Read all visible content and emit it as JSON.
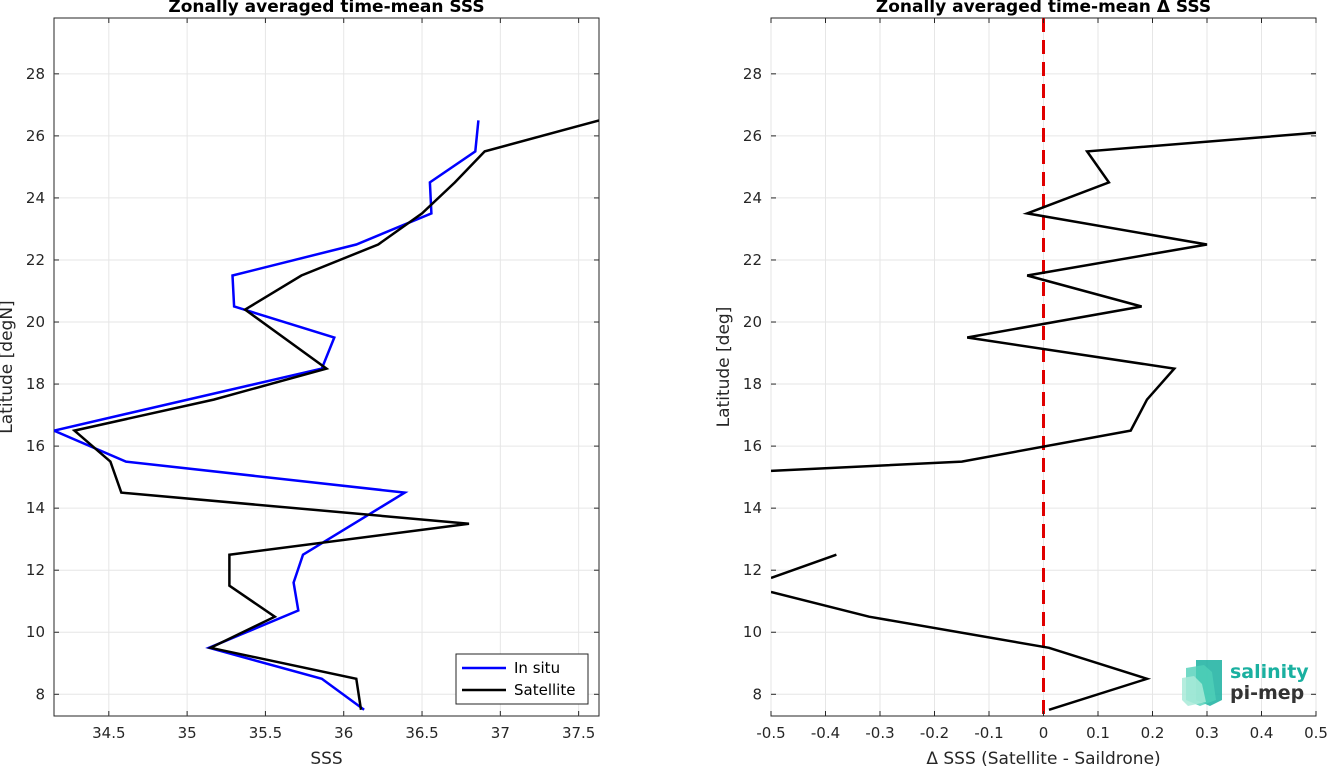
{
  "chart_data": [
    {
      "type": "line",
      "title": "Zonally averaged time-mean SSS",
      "xlabel": "SSS",
      "ylabel": "Latitude [degN]",
      "xlim": [
        34.15,
        37.63
      ],
      "ylim": [
        7.3,
        29.8
      ],
      "xticks": [
        34.5,
        35,
        35.5,
        36,
        36.5,
        37,
        37.5
      ],
      "xtick_labels": [
        "34.5",
        "35",
        "35.5",
        "36",
        "36.5",
        "37",
        "37.5"
      ],
      "yticks": [
        8,
        10,
        12,
        14,
        16,
        18,
        20,
        22,
        24,
        26,
        28
      ],
      "ytick_labels": [
        "8",
        "10",
        "12",
        "14",
        "16",
        "18",
        "20",
        "22",
        "24",
        "26",
        "28"
      ],
      "grid": true,
      "legend_position": "bottom-right",
      "series": [
        {
          "name": "In situ",
          "color": "#0000ff",
          "points": [
            [
              36.13,
              7.5
            ],
            [
              35.86,
              8.5
            ],
            [
              35.14,
              9.5
            ],
            [
              35.71,
              10.7
            ],
            [
              35.68,
              11.6
            ],
            [
              35.74,
              12.5
            ],
            [
              36.39,
              14.5
            ],
            [
              34.61,
              15.5
            ],
            [
              34.15,
              16.5
            ],
            [
              35.86,
              18.5
            ],
            [
              35.94,
              19.5
            ],
            [
              35.3,
              20.5
            ],
            [
              35.29,
              21.5
            ],
            [
              36.08,
              22.5
            ],
            [
              36.56,
              23.5
            ],
            [
              36.55,
              24.5
            ],
            [
              36.84,
              25.5
            ],
            [
              36.86,
              26.5
            ]
          ]
        },
        {
          "name": "Satellite",
          "color": "#000000",
          "points": [
            [
              36.11,
              7.5
            ],
            [
              36.08,
              8.5
            ],
            [
              35.15,
              9.5
            ],
            [
              35.56,
              10.5
            ],
            [
              35.27,
              11.5
            ],
            [
              35.27,
              12.5
            ],
            [
              36.8,
              13.5
            ],
            [
              34.58,
              14.5
            ],
            [
              34.51,
              15.5
            ],
            [
              34.28,
              16.5
            ],
            [
              35.17,
              17.5
            ],
            [
              35.89,
              18.5
            ],
            [
              35.37,
              20.4
            ],
            [
              35.73,
              21.5
            ],
            [
              36.22,
              22.5
            ],
            [
              36.5,
              23.5
            ],
            [
              36.71,
              24.5
            ],
            [
              36.9,
              25.5
            ],
            [
              37.63,
              26.5
            ]
          ]
        }
      ]
    },
    {
      "type": "line",
      "title": "Zonally averaged time-mean Δ SSS",
      "xlabel": "Δ SSS (Satellite - Saildrone)",
      "ylabel": "Latitude [deg]",
      "xlim": [
        -0.5,
        0.5
      ],
      "ylim": [
        7.3,
        29.8
      ],
      "xticks": [
        -0.5,
        -0.4,
        -0.3,
        -0.2,
        -0.1,
        0,
        0.1,
        0.2,
        0.3,
        0.4,
        0.5
      ],
      "xtick_labels": [
        "-0.5",
        "-0.4",
        "-0.3",
        "-0.2",
        "-0.1",
        "0",
        "0.1",
        "0.2",
        "0.3",
        "0.4",
        "0.5"
      ],
      "yticks": [
        8,
        10,
        12,
        14,
        16,
        18,
        20,
        22,
        24,
        26,
        28
      ],
      "ytick_labels": [
        "8",
        "10",
        "12",
        "14",
        "16",
        "18",
        "20",
        "22",
        "24",
        "26",
        "28"
      ],
      "grid": true,
      "reference_line": {
        "x": 0,
        "color": "#e00000",
        "style": "dashed"
      },
      "series": [
        {
          "name": "",
          "color": "#000000",
          "segments": [
            [
              [
                0.01,
                7.5
              ],
              [
                0.19,
                8.5
              ],
              [
                0.01,
                9.5
              ],
              [
                -0.32,
                10.5
              ],
              [
                -0.5,
                11.3
              ]
            ],
            [
              [
                -0.5,
                11.75
              ],
              [
                -0.38,
                12.5
              ]
            ],
            [
              [
                -0.5,
                15.2
              ],
              [
                -0.15,
                15.5
              ],
              [
                0.16,
                16.5
              ],
              [
                0.19,
                17.5
              ],
              [
                0.24,
                18.5
              ],
              [
                -0.14,
                19.5
              ],
              [
                0.18,
                20.5
              ],
              [
                -0.03,
                21.5
              ],
              [
                0.3,
                22.5
              ],
              [
                -0.03,
                23.5
              ],
              [
                0.12,
                24.5
              ],
              [
                0.08,
                25.5
              ],
              [
                0.5,
                26.1
              ]
            ]
          ]
        }
      ]
    }
  ],
  "logo": {
    "line1": "salinity",
    "line2": "pi-mep",
    "color1": "#1ab0a0",
    "color2": "#333333"
  }
}
